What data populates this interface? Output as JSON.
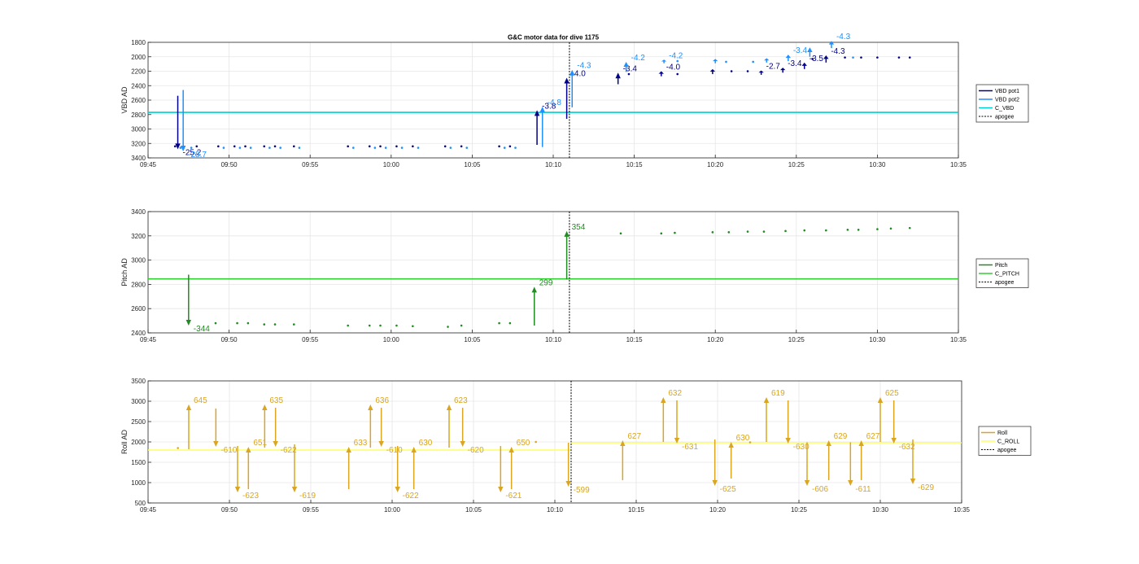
{
  "figure_title": "G&C motor data for dive 1175",
  "chart_data": [
    {
      "type": "line",
      "title": "G&C motor data for dive 1175",
      "ylabel": "VBD AD",
      "ylim": [
        1800,
        3400
      ],
      "y_reversed": true,
      "yticks": [
        1800,
        2000,
        2200,
        2400,
        2600,
        2800,
        3000,
        3200,
        3400
      ],
      "xlim": [
        "09:45",
        "10:35"
      ],
      "xticks": [
        "09:45",
        "09:50",
        "09:55",
        "10:00",
        "10:05",
        "10:10",
        "10:15",
        "10:20",
        "10:25",
        "10:30",
        "10:35"
      ],
      "grid": true,
      "legend_position": "right",
      "apogee": "10:11",
      "series": [
        {
          "name": "VBD pot1",
          "color": "#00008b",
          "points": [
            [
              "09:46:40",
              3240
            ],
            [
              "09:48:00",
              3240
            ],
            [
              "09:49:20",
              3240
            ],
            [
              "09:50:20",
              3240
            ],
            [
              "09:51:00",
              3240
            ],
            [
              "09:52:10",
              3240
            ],
            [
              "09:52:50",
              3240
            ],
            [
              "09:54:00",
              3240
            ],
            [
              "09:57:20",
              3240
            ],
            [
              "09:58:40",
              3240
            ],
            [
              "09:59:20",
              3240
            ],
            [
              "10:00:20",
              3240
            ],
            [
              "10:01:20",
              3240
            ],
            [
              "10:03:20",
              3240
            ],
            [
              "10:04:20",
              3240
            ],
            [
              "10:06:40",
              3240
            ],
            [
              "10:07:20",
              3240
            ],
            [
              "10:14:40",
              2240
            ],
            [
              "10:17:40",
              2240
            ],
            [
              "10:21:00",
              2200
            ],
            [
              "10:22:00",
              2200
            ],
            [
              "10:26:00",
              2030
            ],
            [
              "10:28:00",
              2010
            ],
            [
              "10:29:00",
              2010
            ],
            [
              "10:30:00",
              2010
            ],
            [
              "10:31:20",
              2010
            ],
            [
              "10:32:00",
              2010
            ]
          ]
        },
        {
          "name": "VBD pot2",
          "color": "#1e90ff",
          "points": [
            [
              "09:47:00",
              3260
            ],
            [
              "09:47:40",
              3260
            ],
            [
              "09:49:40",
              3260
            ],
            [
              "09:50:40",
              3260
            ],
            [
              "09:51:20",
              3260
            ],
            [
              "09:52:30",
              3260
            ],
            [
              "09:53:10",
              3260
            ],
            [
              "09:54:20",
              3260
            ],
            [
              "09:57:40",
              3260
            ],
            [
              "09:59:00",
              3260
            ],
            [
              "09:59:40",
              3260
            ],
            [
              "10:00:40",
              3260
            ],
            [
              "10:01:40",
              3260
            ],
            [
              "10:03:40",
              3260
            ],
            [
              "10:04:40",
              3260
            ],
            [
              "10:07:00",
              3260
            ],
            [
              "10:07:40",
              3260
            ],
            [
              "10:17:40",
              2060
            ],
            [
              "10:20:40",
              2070
            ],
            [
              "10:22:20",
              2070
            ],
            [
              "10:28:30",
              2010
            ]
          ]
        },
        {
          "name": "C_VBD",
          "color": "#00ced1",
          "values": [
            2770
          ]
        }
      ],
      "moves": [
        {
          "series": "VBD pot1",
          "t": "09:46:50",
          "from": 2540,
          "to": 3280,
          "label": "-25.2"
        },
        {
          "series": "VBD pot2",
          "t": "09:47:10",
          "from": 2460,
          "to": 3310,
          "label": "-28.7"
        },
        {
          "series": "VBD pot1",
          "t": "10:09:00",
          "from": 3220,
          "to": 2740,
          "label": "-3.8"
        },
        {
          "series": "VBD pot2",
          "t": "10:09:20",
          "from": 3250,
          "to": 2690,
          "label": "-4.8"
        },
        {
          "series": "VBD pot1",
          "t": "10:10:50",
          "from": 2860,
          "to": 2290,
          "label": "-4.0"
        },
        {
          "series": "VBD pot2",
          "t": "10:11:10",
          "from": 2700,
          "to": 2180,
          "label": "-4.3"
        },
        {
          "series": "VBD pot1",
          "t": "10:14:00",
          "from": 2380,
          "to": 2220,
          "label": "-3.4"
        },
        {
          "series": "VBD pot2",
          "t": "10:14:30",
          "from": 2210,
          "to": 2070,
          "label": "-4.2"
        },
        {
          "series": "VBD pot1",
          "t": "10:16:40",
          "from": 2270,
          "to": 2200,
          "label": "-4.0"
        },
        {
          "series": "VBD pot2",
          "t": "10:16:50",
          "from": 2090,
          "to": 2040,
          "label": "-4.2"
        },
        {
          "series": "VBD pot1",
          "t": "10:19:50",
          "from": 2240,
          "to": 2170,
          "label": ""
        },
        {
          "series": "VBD pot2",
          "t": "10:20:00",
          "from": 2090,
          "to": 2030,
          "label": ""
        },
        {
          "series": "VBD pot1",
          "t": "10:22:50",
          "from": 2250,
          "to": 2190,
          "label": "-2.7"
        },
        {
          "series": "VBD pot2",
          "t": "10:23:10",
          "from": 2080,
          "to": 2020,
          "label": ""
        },
        {
          "series": "VBD pot1",
          "t": "10:24:10",
          "from": 2220,
          "to": 2150,
          "label": "-3.4"
        },
        {
          "series": "VBD pot2",
          "t": "10:24:30",
          "from": 2060,
          "to": 1970,
          "label": "-3.4"
        },
        {
          "series": "VBD pot1",
          "t": "10:25:30",
          "from": 2170,
          "to": 2080,
          "label": "-3.5"
        },
        {
          "series": "VBD pot2",
          "t": "10:25:50",
          "from": 2000,
          "to": 1870,
          "label": ""
        },
        {
          "series": "VBD pot1",
          "t": "10:26:50",
          "from": 2080,
          "to": 1980,
          "label": "-4.3"
        },
        {
          "series": "VBD pot2",
          "t": "10:27:10",
          "from": 1880,
          "to": 1780,
          "label": "-4.3"
        }
      ]
    },
    {
      "type": "line",
      "ylabel": "Pitch AD",
      "ylim": [
        2400,
        3400
      ],
      "yticks": [
        2400,
        2600,
        2800,
        3000,
        3200,
        3400
      ],
      "xlim": [
        "09:45",
        "10:35"
      ],
      "xticks": [
        "09:45",
        "09:50",
        "09:55",
        "10:00",
        "10:05",
        "10:10",
        "10:15",
        "10:20",
        "10:25",
        "10:30",
        "10:35"
      ],
      "grid": true,
      "legend_position": "right",
      "apogee": "10:11",
      "series": [
        {
          "name": "Pitch",
          "color": "#228b22",
          "points": [
            [
              "09:49:10",
              2480
            ],
            [
              "09:50:30",
              2480
            ],
            [
              "09:51:10",
              2480
            ],
            [
              "09:52:10",
              2470
            ],
            [
              "09:52:50",
              2470
            ],
            [
              "09:54:00",
              2470
            ],
            [
              "09:57:20",
              2460
            ],
            [
              "09:58:40",
              2460
            ],
            [
              "09:59:20",
              2460
            ],
            [
              "10:00:20",
              2460
            ],
            [
              "10:01:20",
              2455
            ],
            [
              "10:03:30",
              2450
            ],
            [
              "10:04:20",
              2460
            ],
            [
              "10:06:40",
              2480
            ],
            [
              "10:07:20",
              2480
            ],
            [
              "10:14:10",
              3220
            ],
            [
              "10:16:40",
              3220
            ],
            [
              "10:17:30",
              3225
            ],
            [
              "10:19:50",
              3230
            ],
            [
              "10:20:50",
              3230
            ],
            [
              "10:22:00",
              3235
            ],
            [
              "10:23:00",
              3235
            ],
            [
              "10:24:20",
              3240
            ],
            [
              "10:25:30",
              3245
            ],
            [
              "10:26:50",
              3245
            ],
            [
              "10:28:10",
              3250
            ],
            [
              "10:28:50",
              3250
            ],
            [
              "10:30:00",
              3255
            ],
            [
              "10:30:50",
              3260
            ],
            [
              "10:32:00",
              3265
            ]
          ]
        },
        {
          "name": "C_PITCH",
          "color": "#32cd32",
          "values": [
            2845
          ]
        },
        {
          "name": "apogee",
          "color": "#000000"
        }
      ],
      "moves": [
        {
          "series": "Pitch",
          "t": "09:47:30",
          "from": 2880,
          "to": 2460,
          "label": "-344"
        },
        {
          "series": "Pitch",
          "t": "10:08:50",
          "from": 2460,
          "to": 2780,
          "label": "299"
        },
        {
          "series": "Pitch",
          "t": "10:10:50",
          "from": 2840,
          "to": 3240,
          "label": "354"
        }
      ]
    },
    {
      "type": "line",
      "ylabel": "Roll AD",
      "ylim": [
        500,
        3500
      ],
      "yticks": [
        500,
        1000,
        1500,
        2000,
        2500,
        3000,
        3500
      ],
      "xlim": [
        "09:45",
        "10:35"
      ],
      "xticks": [
        "09:45",
        "09:50",
        "09:55",
        "10:00",
        "10:05",
        "10:10",
        "10:15",
        "10:20",
        "10:25",
        "10:30",
        "10:35"
      ],
      "grid": true,
      "legend_position": "right",
      "apogee": "10:11",
      "series": [
        {
          "name": "Roll",
          "color": "#daa520",
          "points": [
            [
              "09:46:50",
              1850
            ],
            [
              "10:08:50",
              2000
            ],
            [
              "10:22:00",
              1990
            ]
          ]
        },
        {
          "name": "C_ROLL",
          "color": "#ffff66",
          "segments": [
            {
              "from": "09:45",
              "to": "10:11",
              "value": 1800
            },
            {
              "from": "10:11",
              "to": "10:35",
              "value": 1980
            }
          ]
        },
        {
          "name": "apogee",
          "color": "#000000"
        }
      ],
      "moves": [
        {
          "t": "09:47:30",
          "from": 1820,
          "to": 2920,
          "label": "645"
        },
        {
          "t": "09:49:10",
          "from": 2820,
          "to": 1880,
          "label": "-610"
        },
        {
          "t": "09:50:30",
          "from": 1900,
          "to": 760,
          "label": "-623"
        },
        {
          "t": "09:51:10",
          "from": 840,
          "to": 1880,
          "label": "651"
        },
        {
          "t": "09:52:10",
          "from": 1860,
          "to": 2920,
          "label": "635"
        },
        {
          "t": "09:52:50",
          "from": 2840,
          "to": 1880,
          "label": "-622"
        },
        {
          "t": "09:54:00",
          "from": 1940,
          "to": 760,
          "label": "-619"
        },
        {
          "t": "09:57:20",
          "from": 840,
          "to": 1880,
          "label": "633"
        },
        {
          "t": "09:58:40",
          "from": 1860,
          "to": 2920,
          "label": "636"
        },
        {
          "t": "09:59:20",
          "from": 2840,
          "to": 1880,
          "label": "-610"
        },
        {
          "t": "10:00:20",
          "from": 1900,
          "to": 760,
          "label": "-622"
        },
        {
          "t": "10:01:20",
          "from": 840,
          "to": 1880,
          "label": "630"
        },
        {
          "t": "10:03:30",
          "from": 1860,
          "to": 2920,
          "label": "623"
        },
        {
          "t": "10:04:20",
          "from": 2840,
          "to": 1880,
          "label": "-620"
        },
        {
          "t": "10:06:40",
          "from": 1900,
          "to": 760,
          "label": "-621"
        },
        {
          "t": "10:07:20",
          "from": 840,
          "to": 1880,
          "label": "650"
        },
        {
          "t": "10:10:50",
          "from": 1980,
          "to": 900,
          "label": "-599"
        },
        {
          "t": "10:14:10",
          "from": 1060,
          "to": 2040,
          "label": "627"
        },
        {
          "t": "10:16:40",
          "from": 2000,
          "to": 3100,
          "label": "632"
        },
        {
          "t": "10:17:30",
          "from": 3020,
          "to": 1960,
          "label": "-631"
        },
        {
          "t": "10:19:50",
          "from": 2060,
          "to": 920,
          "label": "-625"
        },
        {
          "t": "10:20:50",
          "from": 1100,
          "to": 2000,
          "label": "630"
        },
        {
          "t": "10:23:00",
          "from": 2000,
          "to": 3100,
          "label": "619"
        },
        {
          "t": "10:24:20",
          "from": 3020,
          "to": 1960,
          "label": "-630"
        },
        {
          "t": "10:25:30",
          "from": 1990,
          "to": 920,
          "label": "-606"
        },
        {
          "t": "10:26:50",
          "from": 1060,
          "to": 2040,
          "label": "629"
        },
        {
          "t": "10:28:10",
          "from": 1990,
          "to": 920,
          "label": "-611"
        },
        {
          "t": "10:28:50",
          "from": 1060,
          "to": 2040,
          "label": "627"
        },
        {
          "t": "10:30:00",
          "from": 2000,
          "to": 3100,
          "label": "625"
        },
        {
          "t": "10:30:50",
          "from": 3020,
          "to": 1960,
          "label": "-632"
        },
        {
          "t": "10:32:00",
          "from": 2060,
          "to": 960,
          "label": "-629"
        }
      ]
    }
  ]
}
